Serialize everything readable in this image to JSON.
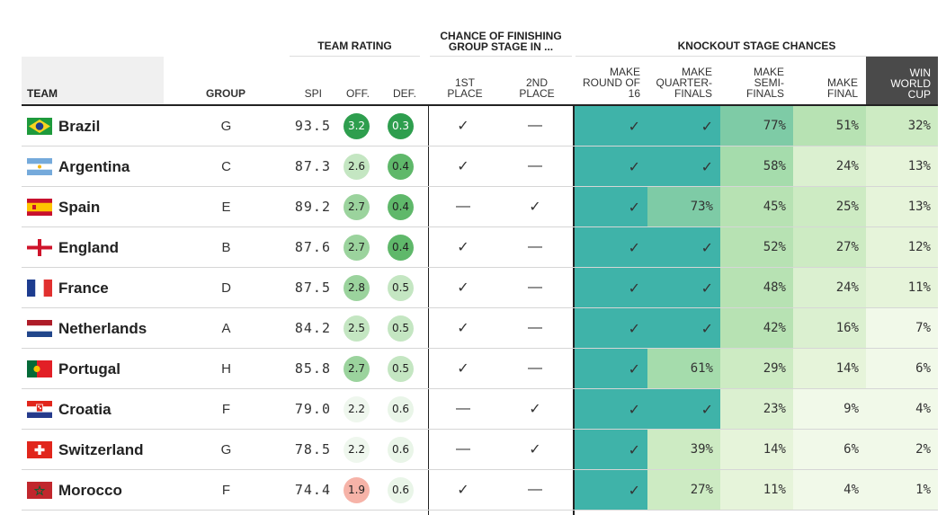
{
  "headers": {
    "team_rating": "TEAM RATING",
    "group_stage_l1": "CHANCE OF FINISHING",
    "group_stage_l2": "GROUP STAGE IN ...",
    "knockout": "KNOCKOUT STAGE CHANCES",
    "team": "TEAM",
    "group": "GROUP",
    "spi": "SPI",
    "off": "OFF.",
    "def": "DEF.",
    "first": [
      "1ST",
      "PLACE"
    ],
    "second": [
      "2ND",
      "PLACE"
    ],
    "r16": [
      "MAKE",
      "ROUND OF",
      "16"
    ],
    "qf": [
      "MAKE",
      "QUARTER-",
      "FINALS"
    ],
    "sf": [
      "MAKE",
      "SEMI-",
      "FINALS"
    ],
    "final": [
      "MAKE",
      "FINAL"
    ],
    "win": [
      "WIN",
      "WORLD",
      "CUP"
    ]
  },
  "colors": {
    "strong_green": "#2e9e4e",
    "teal": "#3fb3a9",
    "pink": "#f6b3a8",
    "rule": "#222222"
  },
  "chart_data": {
    "type": "table",
    "columns": [
      "TEAM",
      "GROUP",
      "SPI",
      "OFF.",
      "DEF.",
      "1ST PLACE",
      "2ND PLACE",
      "MAKE ROUND OF 16",
      "MAKE QUARTER-FINALS",
      "MAKE SEMI-FINALS",
      "MAKE FINAL",
      "WIN WORLD CUP"
    ],
    "rows": [
      {
        "team": "Brazil",
        "flag": "brazil-flag",
        "group": "G",
        "spi": "93.5",
        "off": "3.2",
        "def": "0.3",
        "first": "✓",
        "second": "—",
        "r16": "✓",
        "qf": "✓",
        "sf": "77%",
        "final": "51%",
        "win": "32%"
      },
      {
        "team": "Argentina",
        "flag": "argentina-flag",
        "group": "C",
        "spi": "87.3",
        "off": "2.6",
        "def": "0.4",
        "first": "✓",
        "second": "—",
        "r16": "✓",
        "qf": "✓",
        "sf": "58%",
        "final": "24%",
        "win": "13%"
      },
      {
        "team": "Spain",
        "flag": "spain-flag",
        "group": "E",
        "spi": "89.2",
        "off": "2.7",
        "def": "0.4",
        "first": "—",
        "second": "✓",
        "r16": "✓",
        "qf": "73%",
        "sf": "45%",
        "final": "25%",
        "win": "13%"
      },
      {
        "team": "England",
        "flag": "england-flag",
        "group": "B",
        "spi": "87.6",
        "off": "2.7",
        "def": "0.4",
        "first": "✓",
        "second": "—",
        "r16": "✓",
        "qf": "✓",
        "sf": "52%",
        "final": "27%",
        "win": "12%"
      },
      {
        "team": "France",
        "flag": "france-flag",
        "group": "D",
        "spi": "87.5",
        "off": "2.8",
        "def": "0.5",
        "first": "✓",
        "second": "—",
        "r16": "✓",
        "qf": "✓",
        "sf": "48%",
        "final": "24%",
        "win": "11%"
      },
      {
        "team": "Netherlands",
        "flag": "netherlands-flag",
        "group": "A",
        "spi": "84.2",
        "off": "2.5",
        "def": "0.5",
        "first": "✓",
        "second": "—",
        "r16": "✓",
        "qf": "✓",
        "sf": "42%",
        "final": "16%",
        "win": "7%"
      },
      {
        "team": "Portugal",
        "flag": "portugal-flag",
        "group": "H",
        "spi": "85.8",
        "off": "2.7",
        "def": "0.5",
        "first": "✓",
        "second": "—",
        "r16": "✓",
        "qf": "61%",
        "sf": "29%",
        "final": "14%",
        "win": "6%"
      },
      {
        "team": "Croatia",
        "flag": "croatia-flag",
        "group": "F",
        "spi": "79.0",
        "off": "2.2",
        "def": "0.6",
        "first": "—",
        "second": "✓",
        "r16": "✓",
        "qf": "✓",
        "sf": "23%",
        "final": "9%",
        "win": "4%"
      },
      {
        "team": "Switzerland",
        "flag": "switzerland-flag",
        "group": "G",
        "spi": "78.5",
        "off": "2.2",
        "def": "0.6",
        "first": "—",
        "second": "✓",
        "r16": "✓",
        "qf": "39%",
        "sf": "14%",
        "final": "6%",
        "win": "2%"
      },
      {
        "team": "Morocco",
        "flag": "morocco-flag",
        "group": "F",
        "spi": "74.4",
        "off": "1.9",
        "def": "0.6",
        "first": "✓",
        "second": "—",
        "r16": "✓",
        "qf": "27%",
        "sf": "11%",
        "final": "4%",
        "win": "1%"
      }
    ]
  }
}
